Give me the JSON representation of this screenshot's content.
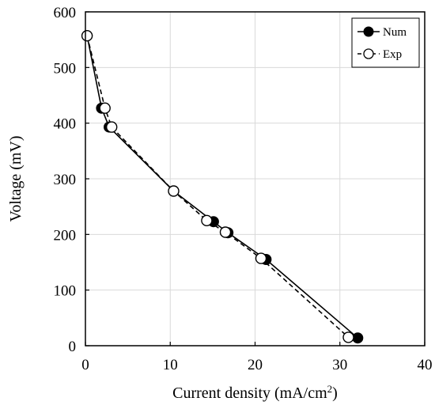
{
  "chart_data": {
    "type": "line",
    "xlabel": "Current density (mA/cm",
    "xlabel_sup": "2",
    "xlabel_end": ")",
    "ylabel": "Voltage (mV)",
    "xlim": [
      0,
      40
    ],
    "ylim": [
      0,
      600
    ],
    "xticks": [
      0,
      10,
      20,
      30,
      40
    ],
    "yticks": [
      0,
      100,
      200,
      300,
      400,
      500,
      600
    ],
    "grid": true,
    "legend_position": "top-right",
    "series": [
      {
        "name": "Num",
        "line_style": "solid",
        "marker": "filled-circle",
        "color": "#000000",
        "x": [
          0.2,
          1.9,
          2.8,
          10.4,
          15.1,
          16.8,
          21.3,
          32.1
        ],
        "y": [
          557,
          427,
          393,
          278,
          223,
          203,
          155,
          14
        ]
      },
      {
        "name": "Exp",
        "line_style": "dashed",
        "marker": "open-circle",
        "color": "#000000",
        "x": [
          0.2,
          2.3,
          3.1,
          10.4,
          14.3,
          16.5,
          20.7,
          31.0
        ],
        "y": [
          557,
          427,
          393,
          278,
          225,
          204,
          157,
          15
        ]
      }
    ]
  }
}
